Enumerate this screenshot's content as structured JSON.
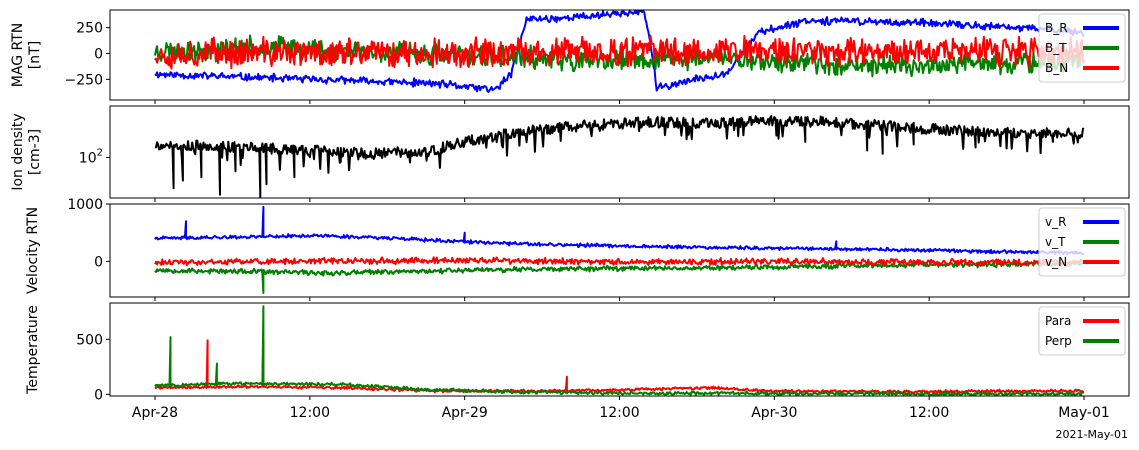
{
  "chart_data": [
    {
      "type": "line",
      "panel": "mag",
      "ylabel": [
        "MAG RTN",
        "[nT]"
      ],
      "ylim": [
        -450,
        420
      ],
      "yscale": "linear",
      "yticks": [
        {
          "value": 250,
          "label": "250"
        },
        {
          "value": 0,
          "label": "0"
        },
        {
          "value": -250,
          "label": "−250"
        }
      ],
      "legend_position": "top-right",
      "series": [
        {
          "name": "B_R",
          "color": "#0000ff",
          "points": [
            [
              0,
              -200
            ],
            [
              0.3,
              -230
            ],
            [
              0.6,
              -260
            ],
            [
              0.9,
              -290
            ],
            [
              1.0,
              -320
            ],
            [
              1.1,
              -350
            ],
            [
              1.15,
              -200
            ],
            [
              1.2,
              330
            ],
            [
              1.3,
              340
            ],
            [
              1.4,
              360
            ],
            [
              1.5,
              390
            ],
            [
              1.58,
              400
            ],
            [
              1.6,
              100
            ],
            [
              1.62,
              -340
            ],
            [
              1.67,
              -300
            ],
            [
              1.75,
              -250
            ],
            [
              1.85,
              -180
            ],
            [
              1.95,
              200
            ],
            [
              2.1,
              320
            ],
            [
              2.3,
              310
            ],
            [
              2.5,
              290
            ],
            [
              2.7,
              260
            ],
            [
              2.9,
              230
            ],
            [
              3.0,
              200
            ]
          ],
          "noise": 45,
          "seed": 11
        },
        {
          "name": "B_T",
          "color": "#008000",
          "points": [
            [
              0,
              20
            ],
            [
              0.2,
              40
            ],
            [
              0.4,
              60
            ],
            [
              0.6,
              30
            ],
            [
              0.8,
              10
            ],
            [
              1.0,
              -20
            ],
            [
              1.2,
              -40
            ],
            [
              1.4,
              -80
            ],
            [
              1.6,
              -60
            ],
            [
              1.8,
              -40
            ],
            [
              2.0,
              -80
            ],
            [
              2.2,
              -100
            ],
            [
              2.4,
              -120
            ],
            [
              2.6,
              -110
            ],
            [
              2.8,
              -90
            ],
            [
              3.0,
              -70
            ]
          ],
          "noise": 130,
          "seed": 23
        },
        {
          "name": "B_N",
          "color": "#ff0000",
          "points": [
            [
              0,
              0
            ],
            [
              0.5,
              10
            ],
            [
              1.0,
              0
            ],
            [
              1.5,
              20
            ],
            [
              2.0,
              30
            ],
            [
              2.5,
              20
            ],
            [
              3.0,
              10
            ]
          ],
          "noise": 170,
          "seed": 37
        }
      ]
    },
    {
      "type": "line",
      "panel": "density",
      "ylabel": [
        "Ion density",
        "[cm-3]"
      ],
      "ylim": [
        35,
        380
      ],
      "yscale": "log",
      "yticks": [
        {
          "value": 100,
          "label": "10",
          "sup": "2"
        }
      ],
      "series": [
        {
          "name": "Ion density",
          "color": "#000000",
          "points": [
            [
              0,
              140
            ],
            [
              0.3,
              130
            ],
            [
              0.5,
              120
            ],
            [
              0.7,
              110
            ],
            [
              0.9,
              120
            ],
            [
              1.0,
              150
            ],
            [
              1.2,
              200
            ],
            [
              1.4,
              230
            ],
            [
              1.6,
              250
            ],
            [
              1.8,
              240
            ],
            [
              2.0,
              260
            ],
            [
              2.2,
              250
            ],
            [
              2.4,
              220
            ],
            [
              2.6,
              200
            ],
            [
              2.8,
              190
            ],
            [
              3.0,
              185
            ]
          ],
          "noise": 0.06,
          "seed": 5,
          "dips": [
            [
              0.06,
              45
            ],
            [
              0.09,
              55
            ],
            [
              0.15,
              60
            ],
            [
              0.21,
              38
            ],
            [
              0.26,
              70
            ],
            [
              0.34,
              36
            ],
            [
              0.36,
              50
            ],
            [
              0.45,
              60
            ],
            [
              0.6,
              90
            ],
            [
              2.1,
              150
            ],
            [
              2.3,
              120
            ],
            [
              2.35,
              110
            ],
            [
              2.45,
              140
            ],
            [
              2.65,
              130
            ],
            [
              2.9,
              150
            ]
          ]
        }
      ]
    },
    {
      "type": "line",
      "panel": "velocity",
      "ylabel": [
        "Velocity RTN"
      ],
      "ylim": [
        -620,
        1000
      ],
      "yscale": "linear",
      "yticks": [
        {
          "value": 1000,
          "label": "1000"
        },
        {
          "value": 0,
          "label": "0"
        }
      ],
      "legend_position": "top-right",
      "series": [
        {
          "name": "v_R",
          "color": "#0000ff",
          "points": [
            [
              0,
              400
            ],
            [
              0.3,
              430
            ],
            [
              0.5,
              450
            ],
            [
              0.7,
              420
            ],
            [
              1.0,
              340
            ],
            [
              1.2,
              300
            ],
            [
              1.4,
              280
            ],
            [
              1.6,
              260
            ],
            [
              1.8,
              240
            ],
            [
              2.0,
              230
            ],
            [
              2.2,
              220
            ],
            [
              2.4,
              200
            ],
            [
              2.6,
              180
            ],
            [
              2.8,
              160
            ],
            [
              3.0,
              150
            ]
          ],
          "noise": 35,
          "seed": 41,
          "spikes": [
            [
              0.35,
              950
            ],
            [
              0.1,
              700
            ],
            [
              1.0,
              500
            ],
            [
              2.2,
              350
            ]
          ]
        },
        {
          "name": "v_T",
          "color": "#008000",
          "points": [
            [
              0,
              -150
            ],
            [
              0.3,
              -180
            ],
            [
              0.6,
              -200
            ],
            [
              1.0,
              -150
            ],
            [
              1.5,
              -120
            ],
            [
              2.0,
              -100
            ],
            [
              2.5,
              -60
            ],
            [
              3.0,
              -40
            ]
          ],
          "noise": 55,
          "seed": 53,
          "spikes": [
            [
              0.35,
              -550
            ]
          ]
        },
        {
          "name": "v_N",
          "color": "#ff0000",
          "points": [
            [
              0,
              -20
            ],
            [
              0.5,
              0
            ],
            [
              1.0,
              20
            ],
            [
              1.5,
              -10
            ],
            [
              2.0,
              0
            ],
            [
              2.5,
              -20
            ],
            [
              3.0,
              -10
            ]
          ],
          "noise": 65,
          "seed": 61
        }
      ]
    },
    {
      "type": "line",
      "panel": "temperature",
      "ylabel": [
        "Temperature"
      ],
      "ylim": [
        -15,
        830
      ],
      "yscale": "linear",
      "yticks": [
        {
          "value": 500,
          "label": "500"
        },
        {
          "value": 0,
          "label": "0"
        }
      ],
      "legend_position": "top-right",
      "series": [
        {
          "name": "Para",
          "color": "#ff0000",
          "points": [
            [
              0,
              60
            ],
            [
              0.3,
              70
            ],
            [
              0.6,
              60
            ],
            [
              0.9,
              30
            ],
            [
              1.2,
              30
            ],
            [
              1.5,
              40
            ],
            [
              1.8,
              60
            ],
            [
              2.0,
              30
            ],
            [
              2.5,
              25
            ],
            [
              3.0,
              30
            ]
          ],
          "noise": 15,
          "seed": 71,
          "spikes": [
            [
              0.17,
              490
            ],
            [
              0.35,
              500
            ],
            [
              1.33,
              160
            ]
          ]
        },
        {
          "name": "Perp",
          "color": "#008000",
          "points": [
            [
              0,
              80
            ],
            [
              0.3,
              100
            ],
            [
              0.6,
              90
            ],
            [
              0.9,
              40
            ],
            [
              1.2,
              20
            ],
            [
              1.5,
              10
            ],
            [
              2.0,
              10
            ],
            [
              2.5,
              5
            ],
            [
              3.0,
              5
            ]
          ],
          "noise": 18,
          "seed": 83,
          "spikes": [
            [
              0.05,
              520
            ],
            [
              0.35,
              800
            ],
            [
              0.2,
              280
            ]
          ]
        }
      ]
    }
  ],
  "x_axis": {
    "range": [
      "2021-04-28 00:00",
      "2021-05-01 00:00"
    ],
    "ticks": [
      {
        "value": "2021-04-28 00:00",
        "label": "Apr-28"
      },
      {
        "value": "2021-04-28 12:00",
        "label": "12:00"
      },
      {
        "value": "2021-04-29 00:00",
        "label": "Apr-29"
      },
      {
        "value": "2021-04-29 12:00",
        "label": "12:00"
      },
      {
        "value": "2021-04-30 00:00",
        "label": "Apr-30"
      },
      {
        "value": "2021-04-30 12:00",
        "label": "12:00"
      },
      {
        "value": "2021-05-01 00:00",
        "label": "May-01"
      }
    ],
    "date_label": "2021-May-01"
  }
}
